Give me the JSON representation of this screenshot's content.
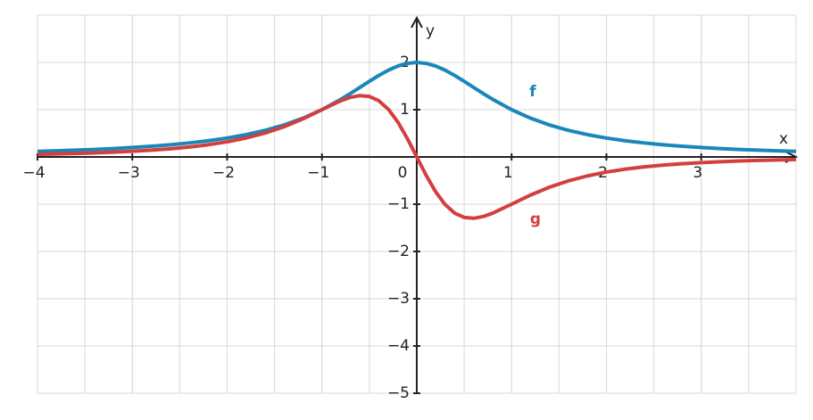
{
  "chart_data": {
    "type": "line",
    "xlabel": "x",
    "ylabel": "y",
    "x": [
      -4,
      -3.8,
      -3.6,
      -3.4,
      -3.2,
      -3,
      -2.8,
      -2.6,
      -2.4,
      -2.2,
      -2,
      -1.8,
      -1.6,
      -1.4,
      -1.2,
      -1,
      -0.8,
      -0.7,
      -0.6,
      -0.5,
      -0.4,
      -0.3,
      -0.2,
      -0.1,
      0,
      0.1,
      0.2,
      0.3,
      0.4,
      0.5,
      0.6,
      0.7,
      0.8,
      1,
      1.2,
      1.4,
      1.6,
      1.8,
      2,
      2.2,
      2.4,
      2.6,
      2.8,
      3,
      3.2,
      3.4,
      3.6,
      3.8,
      4
    ],
    "series": [
      {
        "name": "f",
        "color": "#1a87b8",
        "values": [
          0.118,
          0.13,
          0.143,
          0.159,
          0.178,
          0.2,
          0.226,
          0.258,
          0.296,
          0.342,
          0.4,
          0.472,
          0.562,
          0.676,
          0.82,
          1,
          1.22,
          1.342,
          1.471,
          1.6,
          1.724,
          1.835,
          1.923,
          1.98,
          2,
          1.98,
          1.923,
          1.835,
          1.724,
          1.6,
          1.471,
          1.342,
          1.22,
          1,
          0.82,
          0.676,
          0.562,
          0.472,
          0.4,
          0.342,
          0.296,
          0.258,
          0.226,
          0.2,
          0.178,
          0.159,
          0.143,
          0.13,
          0.118
        ]
      },
      {
        "name": "g",
        "color": "#d33f3f",
        "values": [
          0.055,
          0.064,
          0.074,
          0.086,
          0.101,
          0.12,
          0.143,
          0.173,
          0.21,
          0.258,
          0.32,
          0.401,
          0.505,
          0.639,
          0.806,
          1,
          1.19,
          1.261,
          1.298,
          1.28,
          1.189,
          1.01,
          0.74,
          0.392,
          0,
          -0.392,
          -0.74,
          -1.01,
          -1.189,
          -1.28,
          -1.298,
          -1.261,
          -1.19,
          -1,
          -0.806,
          -0.639,
          -0.505,
          -0.401,
          -0.32,
          -0.258,
          -0.21,
          -0.173,
          -0.143,
          -0.12,
          -0.101,
          -0.086,
          -0.074,
          -0.064,
          -0.055
        ]
      }
    ],
    "xlim": [
      -4,
      4
    ],
    "ylim": [
      -5,
      3
    ],
    "xticks": [
      {
        "value": -4,
        "label": "−4"
      },
      {
        "value": -3,
        "label": "−3"
      },
      {
        "value": -2,
        "label": "−2"
      },
      {
        "value": -1,
        "label": "−1"
      },
      0,
      1,
      2,
      3
    ],
    "yticks": [
      2,
      1,
      {
        "value": -1,
        "label": "−1"
      },
      {
        "value": -2,
        "label": "−2"
      },
      {
        "value": -3,
        "label": "−3"
      },
      {
        "value": -4,
        "label": "−4"
      },
      {
        "value": -5,
        "label": "−5"
      }
    ],
    "grid": true
  }
}
